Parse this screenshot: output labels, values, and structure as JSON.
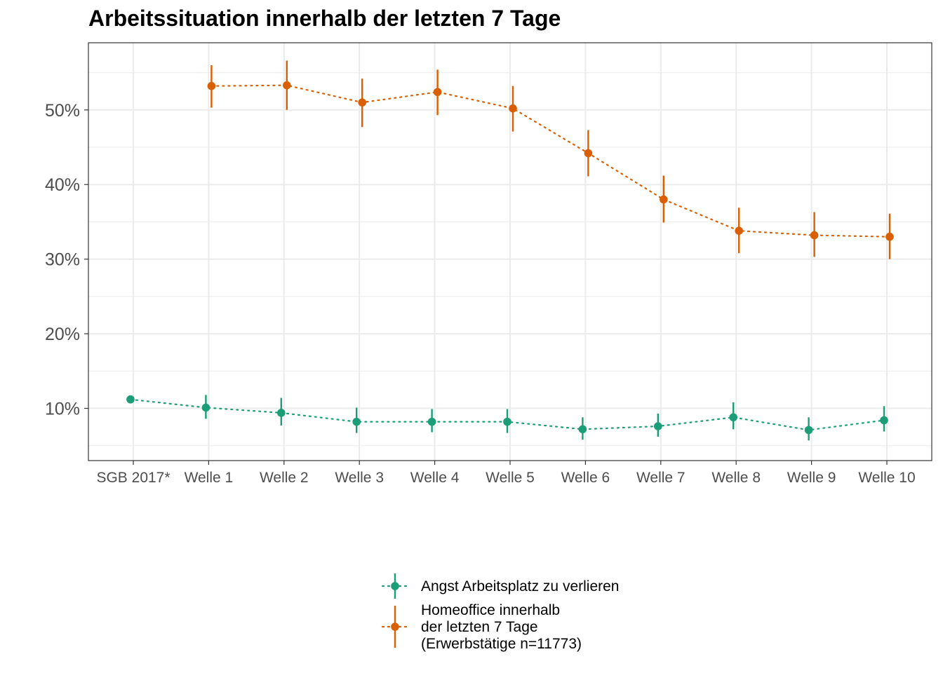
{
  "chart_data": {
    "type": "line",
    "title": "Arbeitssituation innerhalb der letzten 7 Tage",
    "xlabel": "",
    "ylabel": "",
    "categories": [
      "SGB 2017*",
      "Welle 1",
      "Welle 2",
      "Welle 3",
      "Welle 4",
      "Welle 5",
      "Welle 6",
      "Welle 7",
      "Welle 8",
      "Welle 9",
      "Welle 10"
    ],
    "ylim": [
      0.03,
      0.59
    ],
    "yticks": [
      0.1,
      0.2,
      0.3,
      0.4,
      0.5
    ],
    "ytick_labels": [
      "10%",
      "20%",
      "30%",
      "40%",
      "50%"
    ],
    "grid": true,
    "legend_position": "bottom",
    "series": [
      {
        "name": "Angst Arbeitsplatz zu verlieren",
        "name_lines": [
          "Angst Arbeitsplatz zu verlieren"
        ],
        "color": "#1b9e77",
        "line_style": "dotted",
        "points": [
          {
            "category": "SGB 2017*",
            "y": 0.112,
            "lo": null,
            "hi": null
          },
          {
            "category": "Welle 1",
            "y": 0.101,
            "lo": 0.086,
            "hi": 0.118
          },
          {
            "category": "Welle 2",
            "y": 0.094,
            "lo": 0.077,
            "hi": 0.114
          },
          {
            "category": "Welle 3",
            "y": 0.082,
            "lo": 0.067,
            "hi": 0.101
          },
          {
            "category": "Welle 4",
            "y": 0.082,
            "lo": 0.068,
            "hi": 0.099
          },
          {
            "category": "Welle 5",
            "y": 0.082,
            "lo": 0.067,
            "hi": 0.099
          },
          {
            "category": "Welle 6",
            "y": 0.072,
            "lo": 0.058,
            "hi": 0.088
          },
          {
            "category": "Welle 7",
            "y": 0.076,
            "lo": 0.062,
            "hi": 0.093
          },
          {
            "category": "Welle 8",
            "y": 0.088,
            "lo": 0.072,
            "hi": 0.108
          },
          {
            "category": "Welle 9",
            "y": 0.071,
            "lo": 0.057,
            "hi": 0.088
          },
          {
            "category": "Welle 10",
            "y": 0.084,
            "lo": 0.069,
            "hi": 0.103
          }
        ]
      },
      {
        "name": "Homeoffice innerhalb der letzten 7 Tage (Erwerbstätige n=11773)",
        "name_lines": [
          "Homeoffice innerhalb",
          "der letzten 7 Tage",
          "(Erwerbstätige n=11773)"
        ],
        "color": "#d95f02",
        "line_style": "dotted",
        "points": [
          {
            "category": "Welle 1",
            "y": 0.532,
            "lo": 0.503,
            "hi": 0.56
          },
          {
            "category": "Welle 2",
            "y": 0.533,
            "lo": 0.5,
            "hi": 0.566
          },
          {
            "category": "Welle 3",
            "y": 0.51,
            "lo": 0.477,
            "hi": 0.542
          },
          {
            "category": "Welle 4",
            "y": 0.524,
            "lo": 0.493,
            "hi": 0.554
          },
          {
            "category": "Welle 5",
            "y": 0.502,
            "lo": 0.471,
            "hi": 0.532
          },
          {
            "category": "Welle 6",
            "y": 0.442,
            "lo": 0.411,
            "hi": 0.473
          },
          {
            "category": "Welle 7",
            "y": 0.38,
            "lo": 0.349,
            "hi": 0.412
          },
          {
            "category": "Welle 8",
            "y": 0.338,
            "lo": 0.308,
            "hi": 0.369
          },
          {
            "category": "Welle 9",
            "y": 0.332,
            "lo": 0.303,
            "hi": 0.363
          },
          {
            "category": "Welle 10",
            "y": 0.33,
            "lo": 0.3,
            "hi": 0.361
          }
        ]
      }
    ]
  }
}
